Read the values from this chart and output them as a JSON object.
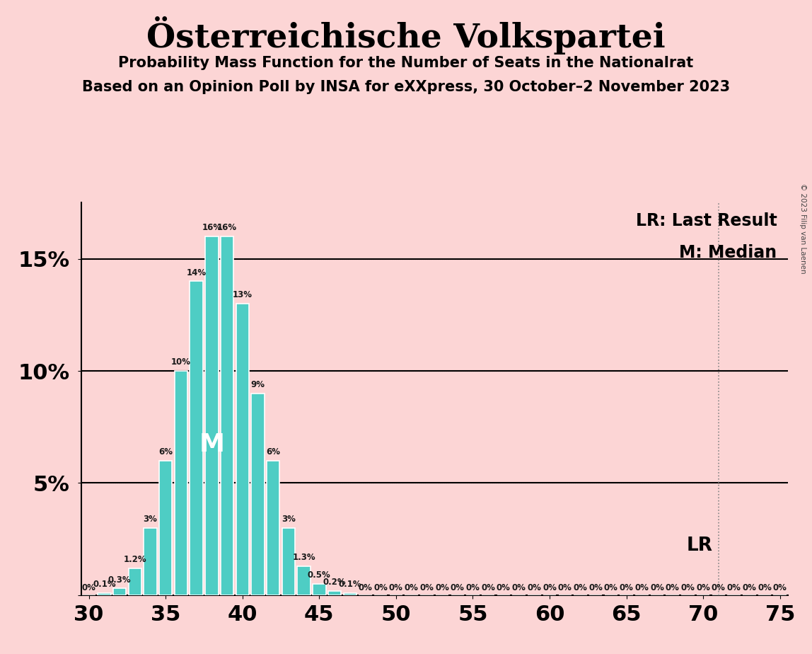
{
  "title": "Österreichische Volkspartei",
  "subtitle1": "Probability Mass Function for the Number of Seats in the Nationalrat",
  "subtitle2": "Based on an Opinion Poll by INSA for eXXpress, 30 October–2 November 2023",
  "copyright": "© 2023 Filip van Laenen",
  "background_color": "#fcd5d5",
  "bar_color": "#4ecdc4",
  "bar_edge_color": "#ffffff",
  "seats": [
    30,
    31,
    32,
    33,
    34,
    35,
    36,
    37,
    38,
    39,
    40,
    41,
    42,
    43,
    44,
    45,
    46,
    47,
    48,
    49,
    50,
    51,
    52,
    53,
    54,
    55,
    56,
    57,
    58,
    59,
    60,
    61,
    62,
    63,
    64,
    65,
    66,
    67,
    68,
    69,
    70,
    71,
    72,
    73,
    74,
    75
  ],
  "probabilities": [
    0.0,
    0.1,
    0.3,
    1.2,
    3.0,
    6.0,
    10.0,
    14.0,
    16.0,
    16.0,
    13.0,
    9.0,
    6.0,
    3.0,
    1.3,
    0.5,
    0.2,
    0.1,
    0.0,
    0.0,
    0.0,
    0.0,
    0.0,
    0.0,
    0.0,
    0.0,
    0.0,
    0.0,
    0.0,
    0.0,
    0.0,
    0.0,
    0.0,
    0.0,
    0.0,
    0.0,
    0.0,
    0.0,
    0.0,
    0.0,
    0.0,
    0.0,
    0.0,
    0.0,
    0.0,
    0.0
  ],
  "labels": [
    "0%",
    "0.1%",
    "0.3%",
    "1.2%",
    "3%",
    "6%",
    "10%",
    "14%",
    "16%",
    "16%",
    "13%",
    "9%",
    "6%",
    "3%",
    "1.3%",
    "0.5%",
    "0.2%",
    "0.1%",
    "0%",
    "0%",
    "0%",
    "0%",
    "0%",
    "0%",
    "0%",
    "0%",
    "0%",
    "0%",
    "0%",
    "0%",
    "0%",
    "0%",
    "0%",
    "0%",
    "0%",
    "0%",
    "0%",
    "0%",
    "0%",
    "0%",
    "0%",
    "0%",
    "0%",
    "0%",
    "0%",
    "0%"
  ],
  "median_seat": 38,
  "lr_seat": 71,
  "lr_label": "LR",
  "median_label": "M",
  "ylim": [
    0,
    17.5
  ],
  "yticks": [
    0,
    5,
    10,
    15
  ],
  "ytick_labels": [
    "",
    "5%",
    "10%",
    "15%"
  ],
  "xlim": [
    29.5,
    75.5
  ],
  "xticks": [
    30,
    35,
    40,
    45,
    50,
    55,
    60,
    65,
    70,
    75
  ],
  "title_fontsize": 34,
  "subtitle_fontsize": 15,
  "axis_tick_fontsize": 22,
  "label_fontsize": 8.5,
  "legend_fontsize": 17,
  "median_fontsize": 26
}
